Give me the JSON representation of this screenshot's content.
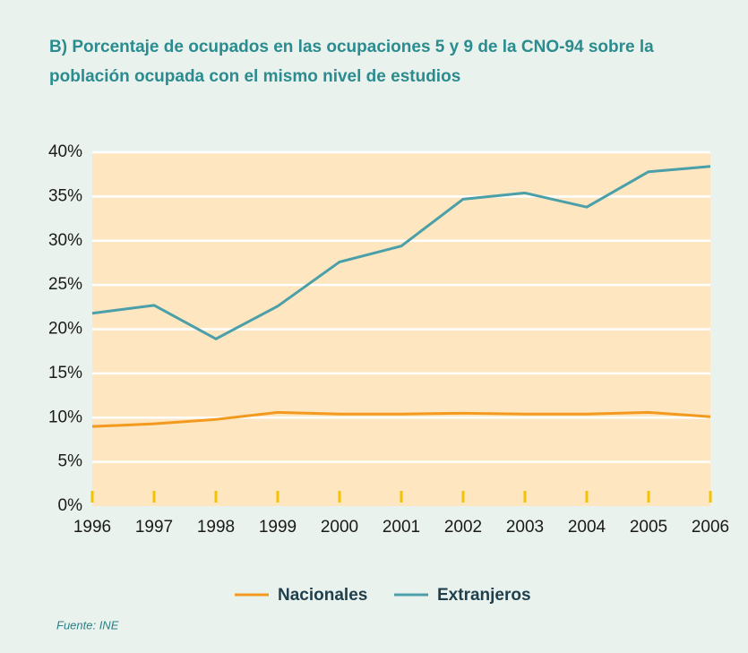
{
  "chart_data": {
    "type": "line",
    "title": [
      "B) Porcentaje de ocupados en las ocupaciones 5 y 9 de la CNO-94 sobre la",
      "población ocupada con el mismo nivel de estudios"
    ],
    "x": [
      1996,
      1997,
      1998,
      1999,
      2000,
      2001,
      2002,
      2003,
      2004,
      2005,
      2006
    ],
    "xlim": [
      1996,
      2006
    ],
    "xticks": [
      1996,
      1997,
      1998,
      1999,
      2000,
      2001,
      2002,
      2003,
      2004,
      2005,
      2006
    ],
    "ylim": [
      0,
      40
    ],
    "yticks": [
      {
        "value": 0,
        "label": "0%"
      },
      {
        "value": 5,
        "label": "5%"
      },
      {
        "value": 10,
        "label": "10%"
      },
      {
        "value": 15,
        "label": "15%"
      },
      {
        "value": 20,
        "label": "20%"
      },
      {
        "value": 25,
        "label": "25%"
      },
      {
        "value": 30,
        "label": "30%"
      },
      {
        "value": 35,
        "label": "35%"
      },
      {
        "value": 40,
        "label": "40%"
      }
    ],
    "grid": true,
    "series": [
      {
        "name": "Nacionales",
        "color": "#f39a1e",
        "values": [
          9.0,
          9.3,
          9.8,
          10.6,
          10.4,
          10.4,
          10.5,
          10.4,
          10.4,
          10.6,
          10.1
        ]
      },
      {
        "name": "Extranjeros",
        "color": "#4a9fa8",
        "values": [
          21.8,
          22.7,
          18.9,
          22.6,
          27.6,
          29.4,
          34.7,
          35.4,
          33.8,
          37.8,
          38.4
        ]
      }
    ],
    "source": "Fuente:  INE"
  }
}
